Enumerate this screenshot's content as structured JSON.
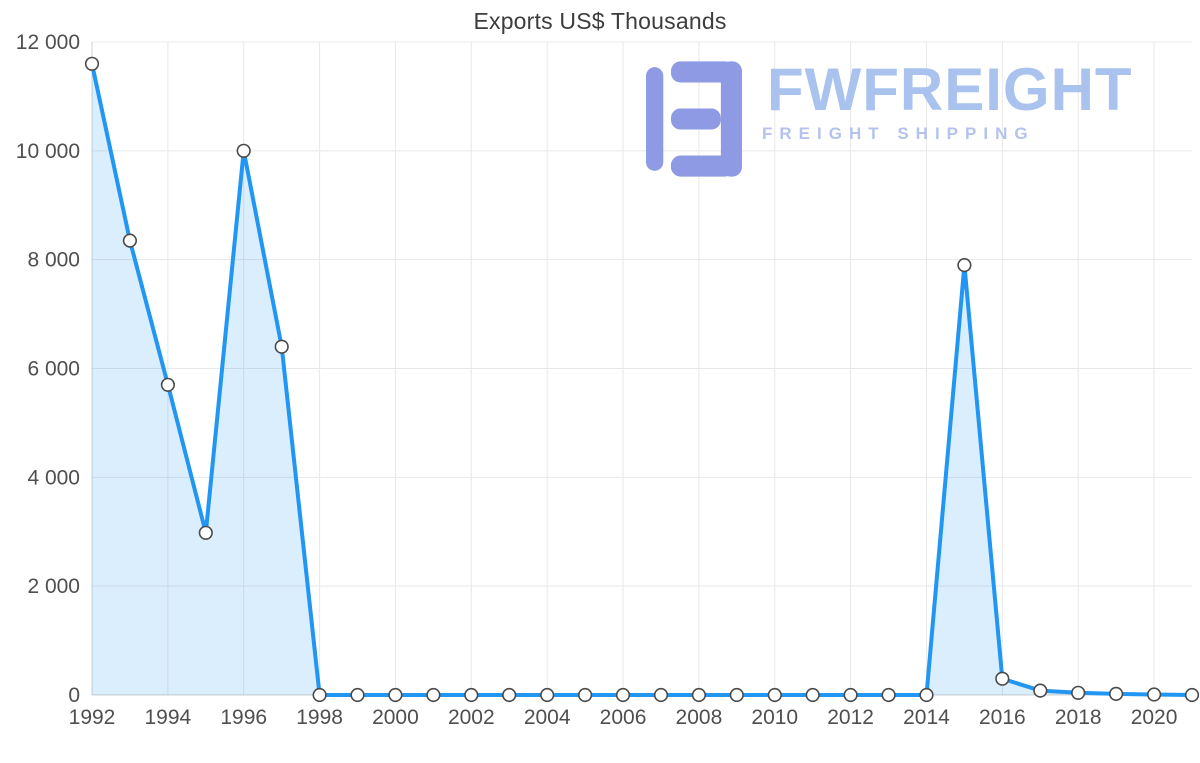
{
  "chart_data": {
    "type": "area",
    "title": "Exports US$ Thousands",
    "xlabel": "",
    "ylabel": "",
    "ylim": [
      0,
      12000
    ],
    "grid": true,
    "years": [
      1992,
      1993,
      1994,
      1995,
      1996,
      1997,
      1998,
      1999,
      2000,
      2001,
      2002,
      2003,
      2004,
      2005,
      2006,
      2007,
      2008,
      2009,
      2010,
      2011,
      2012,
      2013,
      2014,
      2015,
      2016,
      2017,
      2018,
      2019,
      2020,
      2021
    ],
    "values": [
      11600,
      8350,
      5700,
      2980,
      10000,
      6400,
      0,
      0,
      0,
      0,
      0,
      0,
      0,
      0,
      0,
      0,
      0,
      0,
      0,
      0,
      0,
      0,
      0,
      7900,
      300,
      80,
      40,
      20,
      10,
      0
    ],
    "y_ticks": [
      {
        "value": 0,
        "label": "0"
      },
      {
        "value": 2000,
        "label": "2 000"
      },
      {
        "value": 4000,
        "label": "4 000"
      },
      {
        "value": 6000,
        "label": "6 000"
      },
      {
        "value": 8000,
        "label": "8 000"
      },
      {
        "value": 10000,
        "label": "10 000"
      },
      {
        "value": 12000,
        "label": "12 000"
      }
    ],
    "x_tick_years": [
      1992,
      1994,
      1996,
      1998,
      2000,
      2002,
      2004,
      2006,
      2008,
      2010,
      2012,
      2014,
      2016,
      2018,
      2020
    ],
    "colors": {
      "line": "#2196f3",
      "fill": "rgba(33,150,243,0.16)",
      "grid": "#e8e8e8",
      "axis": "#cfcfcf",
      "marker_fill": "#ffffff",
      "marker_stroke": "#4a4a4a",
      "tick_text": "#4f4f4f",
      "title_text": "#3d3d3d"
    }
  },
  "watermark": {
    "brand": "FWFREIGHT",
    "tagline": "FREIGHT SHIPPING",
    "brand_color": "#a9c3ee",
    "tagline_color": "#b4c2ee",
    "mark_color": "#8e9ae3"
  }
}
